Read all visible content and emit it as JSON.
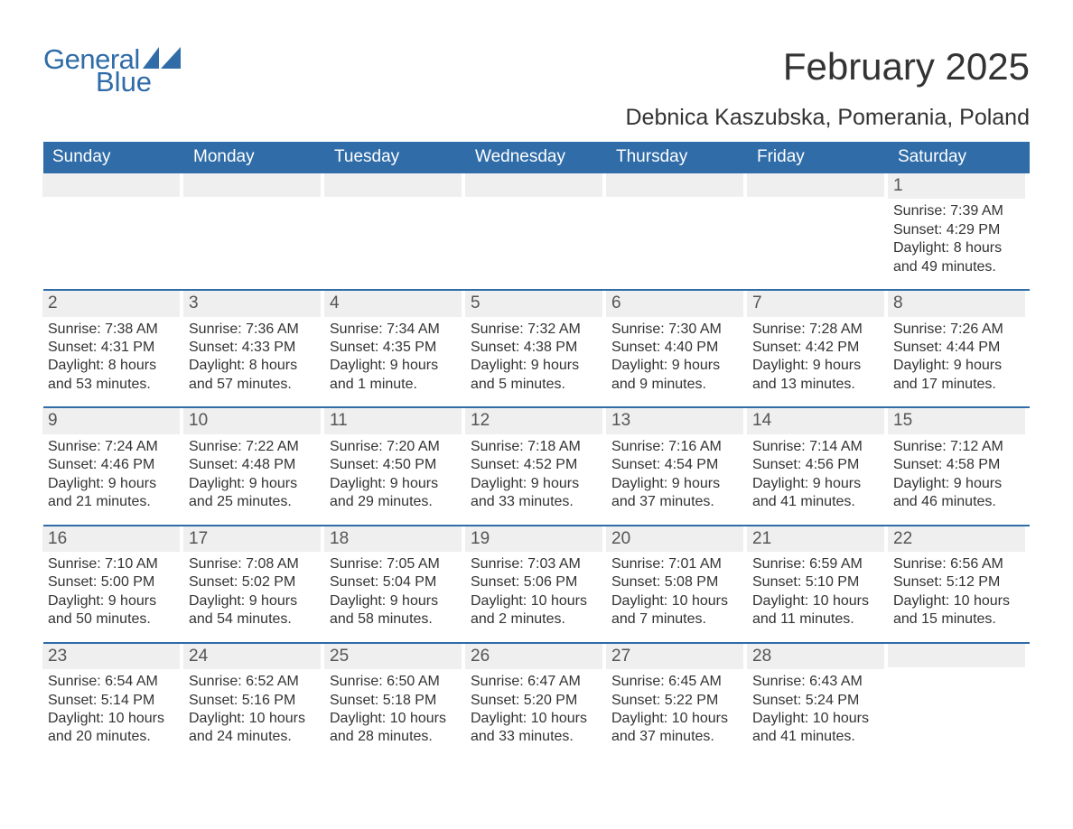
{
  "brand": {
    "word1": "General",
    "word2": "Blue",
    "accent_color": "#2f6ca8"
  },
  "title": "February 2025",
  "subtitle": "Debnica Kaszubska, Pomerania, Poland",
  "colors": {
    "header_bg": "#2f6ca8",
    "header_text": "#ffffff",
    "row_bg": "#efefef",
    "text": "#333333",
    "divider": "#2f6ca8",
    "page_bg": "#ffffff"
  },
  "typography": {
    "title_fontsize": 42,
    "subtitle_fontsize": 25,
    "dow_fontsize": 19,
    "daynum_fontsize": 19,
    "body_fontsize": 16
  },
  "layout": {
    "columns": 7,
    "week_min_height": 128,
    "first_day_column_index": 6
  },
  "days_of_week": [
    "Sunday",
    "Monday",
    "Tuesday",
    "Wednesday",
    "Thursday",
    "Friday",
    "Saturday"
  ],
  "weeks": [
    [
      {
        "empty": true
      },
      {
        "empty": true
      },
      {
        "empty": true
      },
      {
        "empty": true
      },
      {
        "empty": true
      },
      {
        "empty": true
      },
      {
        "n": "1",
        "sunrise": "Sunrise: 7:39 AM",
        "sunset": "Sunset: 4:29 PM",
        "day1": "Daylight: 8 hours",
        "day2": "and 49 minutes."
      }
    ],
    [
      {
        "n": "2",
        "sunrise": "Sunrise: 7:38 AM",
        "sunset": "Sunset: 4:31 PM",
        "day1": "Daylight: 8 hours",
        "day2": "and 53 minutes."
      },
      {
        "n": "3",
        "sunrise": "Sunrise: 7:36 AM",
        "sunset": "Sunset: 4:33 PM",
        "day1": "Daylight: 8 hours",
        "day2": "and 57 minutes."
      },
      {
        "n": "4",
        "sunrise": "Sunrise: 7:34 AM",
        "sunset": "Sunset: 4:35 PM",
        "day1": "Daylight: 9 hours",
        "day2": "and 1 minute."
      },
      {
        "n": "5",
        "sunrise": "Sunrise: 7:32 AM",
        "sunset": "Sunset: 4:38 PM",
        "day1": "Daylight: 9 hours",
        "day2": "and 5 minutes."
      },
      {
        "n": "6",
        "sunrise": "Sunrise: 7:30 AM",
        "sunset": "Sunset: 4:40 PM",
        "day1": "Daylight: 9 hours",
        "day2": "and 9 minutes."
      },
      {
        "n": "7",
        "sunrise": "Sunrise: 7:28 AM",
        "sunset": "Sunset: 4:42 PM",
        "day1": "Daylight: 9 hours",
        "day2": "and 13 minutes."
      },
      {
        "n": "8",
        "sunrise": "Sunrise: 7:26 AM",
        "sunset": "Sunset: 4:44 PM",
        "day1": "Daylight: 9 hours",
        "day2": "and 17 minutes."
      }
    ],
    [
      {
        "n": "9",
        "sunrise": "Sunrise: 7:24 AM",
        "sunset": "Sunset: 4:46 PM",
        "day1": "Daylight: 9 hours",
        "day2": "and 21 minutes."
      },
      {
        "n": "10",
        "sunrise": "Sunrise: 7:22 AM",
        "sunset": "Sunset: 4:48 PM",
        "day1": "Daylight: 9 hours",
        "day2": "and 25 minutes."
      },
      {
        "n": "11",
        "sunrise": "Sunrise: 7:20 AM",
        "sunset": "Sunset: 4:50 PM",
        "day1": "Daylight: 9 hours",
        "day2": "and 29 minutes."
      },
      {
        "n": "12",
        "sunrise": "Sunrise: 7:18 AM",
        "sunset": "Sunset: 4:52 PM",
        "day1": "Daylight: 9 hours",
        "day2": "and 33 minutes."
      },
      {
        "n": "13",
        "sunrise": "Sunrise: 7:16 AM",
        "sunset": "Sunset: 4:54 PM",
        "day1": "Daylight: 9 hours",
        "day2": "and 37 minutes."
      },
      {
        "n": "14",
        "sunrise": "Sunrise: 7:14 AM",
        "sunset": "Sunset: 4:56 PM",
        "day1": "Daylight: 9 hours",
        "day2": "and 41 minutes."
      },
      {
        "n": "15",
        "sunrise": "Sunrise: 7:12 AM",
        "sunset": "Sunset: 4:58 PM",
        "day1": "Daylight: 9 hours",
        "day2": "and 46 minutes."
      }
    ],
    [
      {
        "n": "16",
        "sunrise": "Sunrise: 7:10 AM",
        "sunset": "Sunset: 5:00 PM",
        "day1": "Daylight: 9 hours",
        "day2": "and 50 minutes."
      },
      {
        "n": "17",
        "sunrise": "Sunrise: 7:08 AM",
        "sunset": "Sunset: 5:02 PM",
        "day1": "Daylight: 9 hours",
        "day2": "and 54 minutes."
      },
      {
        "n": "18",
        "sunrise": "Sunrise: 7:05 AM",
        "sunset": "Sunset: 5:04 PM",
        "day1": "Daylight: 9 hours",
        "day2": "and 58 minutes."
      },
      {
        "n": "19",
        "sunrise": "Sunrise: 7:03 AM",
        "sunset": "Sunset: 5:06 PM",
        "day1": "Daylight: 10 hours",
        "day2": "and 2 minutes."
      },
      {
        "n": "20",
        "sunrise": "Sunrise: 7:01 AM",
        "sunset": "Sunset: 5:08 PM",
        "day1": "Daylight: 10 hours",
        "day2": "and 7 minutes."
      },
      {
        "n": "21",
        "sunrise": "Sunrise: 6:59 AM",
        "sunset": "Sunset: 5:10 PM",
        "day1": "Daylight: 10 hours",
        "day2": "and 11 minutes."
      },
      {
        "n": "22",
        "sunrise": "Sunrise: 6:56 AM",
        "sunset": "Sunset: 5:12 PM",
        "day1": "Daylight: 10 hours",
        "day2": "and 15 minutes."
      }
    ],
    [
      {
        "n": "23",
        "sunrise": "Sunrise: 6:54 AM",
        "sunset": "Sunset: 5:14 PM",
        "day1": "Daylight: 10 hours",
        "day2": "and 20 minutes."
      },
      {
        "n": "24",
        "sunrise": "Sunrise: 6:52 AM",
        "sunset": "Sunset: 5:16 PM",
        "day1": "Daylight: 10 hours",
        "day2": "and 24 minutes."
      },
      {
        "n": "25",
        "sunrise": "Sunrise: 6:50 AM",
        "sunset": "Sunset: 5:18 PM",
        "day1": "Daylight: 10 hours",
        "day2": "and 28 minutes."
      },
      {
        "n": "26",
        "sunrise": "Sunrise: 6:47 AM",
        "sunset": "Sunset: 5:20 PM",
        "day1": "Daylight: 10 hours",
        "day2": "and 33 minutes."
      },
      {
        "n": "27",
        "sunrise": "Sunrise: 6:45 AM",
        "sunset": "Sunset: 5:22 PM",
        "day1": "Daylight: 10 hours",
        "day2": "and 37 minutes."
      },
      {
        "n": "28",
        "sunrise": "Sunrise: 6:43 AM",
        "sunset": "Sunset: 5:24 PM",
        "day1": "Daylight: 10 hours",
        "day2": "and 41 minutes."
      },
      {
        "empty": true
      }
    ]
  ]
}
